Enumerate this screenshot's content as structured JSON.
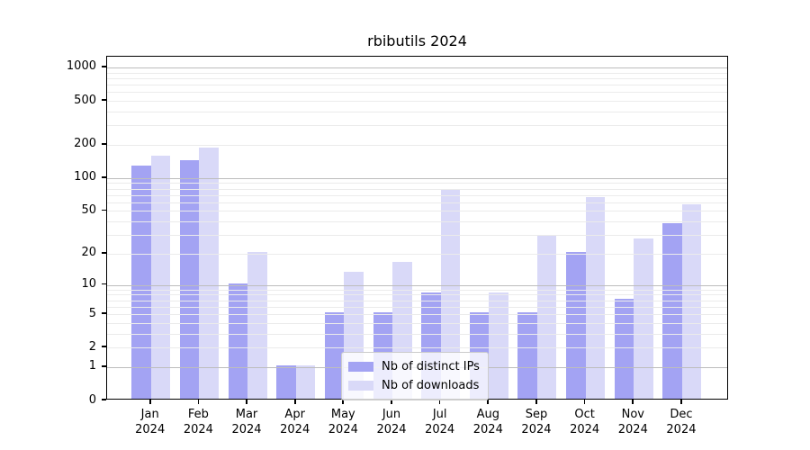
{
  "title": "rbibutils 2024",
  "chart_data": {
    "type": "bar",
    "scale": "log1p",
    "title": "rbibutils 2024",
    "xlabel": "",
    "ylabel": "",
    "grid": "both",
    "legend_position": "lower center",
    "ylim": [
      0,
      1250
    ],
    "y_ticks": [
      0,
      1,
      2,
      5,
      10,
      20,
      50,
      100,
      200,
      500,
      1000
    ],
    "y_minor_gridlines": [
      2,
      3,
      4,
      5,
      6,
      7,
      8,
      9,
      20,
      30,
      40,
      50,
      60,
      70,
      80,
      90,
      200,
      300,
      400,
      500,
      600,
      700,
      800,
      900
    ],
    "y_major_gridlines": [
      1,
      10,
      100,
      1000
    ],
    "categories": [
      "Jan 2024",
      "Feb 2024",
      "Mar 2024",
      "Apr 2024",
      "May 2024",
      "Jun 2024",
      "Jul 2024",
      "Aug 2024",
      "Sep 2024",
      "Oct 2024",
      "Nov 2024",
      "Dec 2024"
    ],
    "series": [
      {
        "name": "Nb of distinct IPs",
        "color": "#a3a3f3",
        "values": [
          126,
          140,
          10,
          1,
          5,
          5,
          8,
          5,
          5,
          20,
          7,
          37
        ]
      },
      {
        "name": "Nb of downloads",
        "color": "#d9d9f8",
        "values": [
          155,
          183,
          20,
          1,
          13,
          16,
          76,
          8,
          29,
          65,
          27,
          55
        ]
      }
    ]
  },
  "colors": {
    "distinct_ips_bar": "#a3a3f3",
    "downloads_bar": "#d9d9f8",
    "major_gridline": "#bdbdbd",
    "minor_gridline": "#ebebeb",
    "axis": "#000000",
    "background": "#ffffff"
  }
}
